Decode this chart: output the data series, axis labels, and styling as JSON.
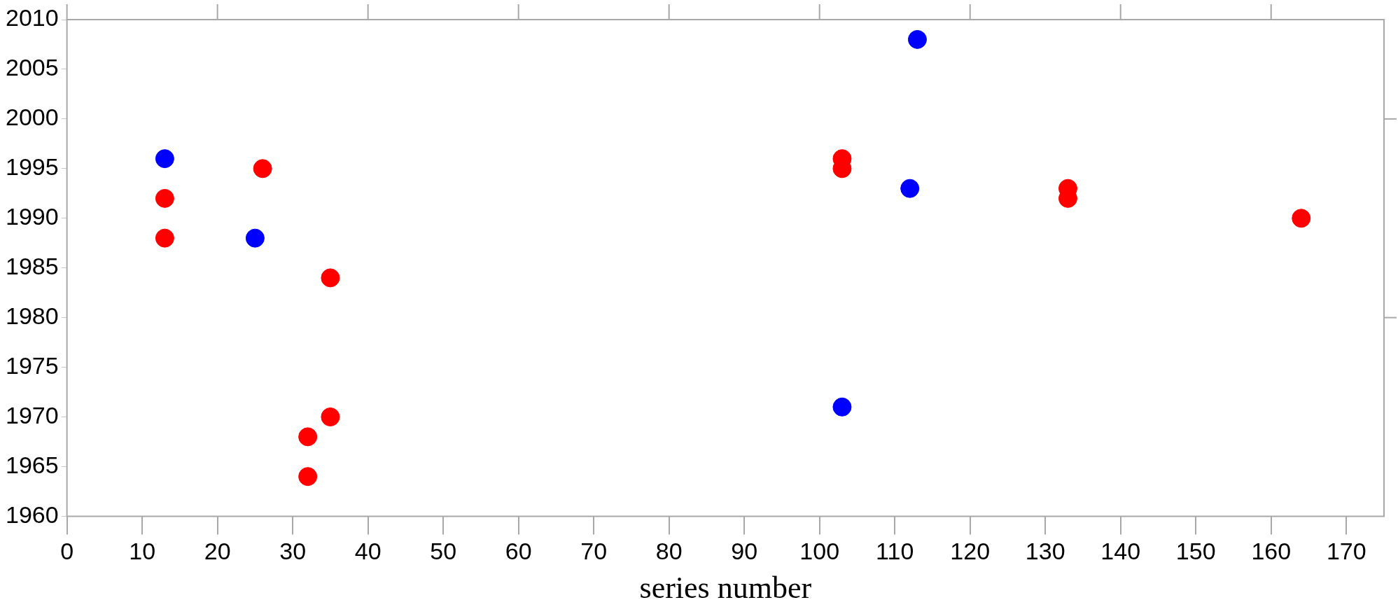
{
  "chart_data": {
    "type": "scatter",
    "xlabel": "series number",
    "xlim": [
      0,
      175
    ],
    "xticks": [
      0,
      10,
      20,
      30,
      40,
      50,
      60,
      70,
      80,
      90,
      100,
      110,
      120,
      130,
      140,
      150,
      160,
      170
    ],
    "ylim": [
      1960,
      2010
    ],
    "yticks": [
      1960,
      1965,
      1970,
      1975,
      1980,
      1985,
      1990,
      1995,
      2000,
      2005,
      2010
    ],
    "grid": false,
    "legend": false,
    "marker": "circle",
    "series": [
      {
        "color": "#0000ff",
        "x": [
          13,
          25,
          103,
          112,
          113
        ],
        "values": [
          1996,
          1988,
          1971,
          1993,
          2008
        ]
      },
      {
        "color": "#ff0000",
        "x": [
          13,
          13,
          26,
          32,
          32,
          35,
          35,
          103,
          103,
          133,
          133,
          164
        ],
        "values": [
          1992,
          1988,
          1995,
          1968,
          1964,
          1970,
          1984,
          1996,
          1995,
          1993,
          1992,
          1990
        ]
      }
    ]
  }
}
